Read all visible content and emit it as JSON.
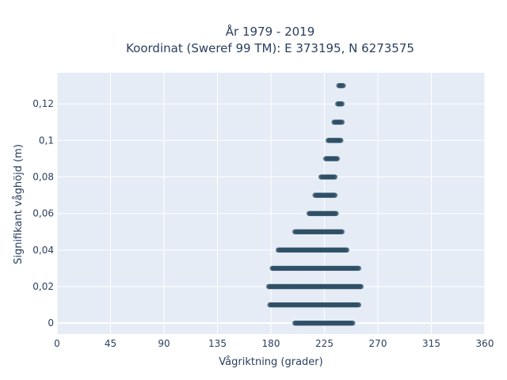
{
  "chart_data": {
    "type": "scatter",
    "title_line1": "År 1979 - 2019",
    "title_line2": "Koordinat (Sweref 99 TM): E 373195, N 6273575",
    "xlabel": "Vågriktning (grader)",
    "ylabel": "Signifikant våghöjd (m)",
    "xlim": [
      0,
      360
    ],
    "ylim": [
      -0.006,
      0.137
    ],
    "x_ticks": [
      0,
      45,
      90,
      135,
      180,
      225,
      270,
      315,
      360
    ],
    "x_tick_labels": [
      "0",
      "45",
      "90",
      "135",
      "180",
      "225",
      "270",
      "315",
      "360"
    ],
    "y_ticks": [
      0,
      0.02,
      0.04,
      0.06,
      0.08,
      0.1,
      0.12
    ],
    "y_tick_labels": [
      "0",
      "0,02",
      "0,04",
      "0,06",
      "0,08",
      "0,1",
      "0,12"
    ],
    "grid": true,
    "plot_background": "#e5ecf6",
    "marker_color": "#2f5066",
    "series": [
      {
        "bands": [
          {
            "y": 0.0,
            "x_min": 200,
            "x_max": 249
          },
          {
            "y": 0.01,
            "x_min": 179,
            "x_max": 254
          },
          {
            "y": 0.02,
            "x_min": 178,
            "x_max": 256
          },
          {
            "y": 0.03,
            "x_min": 181,
            "x_max": 254
          },
          {
            "y": 0.04,
            "x_min": 186,
            "x_max": 244
          },
          {
            "y": 0.05,
            "x_min": 200,
            "x_max": 240
          },
          {
            "y": 0.06,
            "x_min": 212,
            "x_max": 235
          },
          {
            "y": 0.07,
            "x_min": 217,
            "x_max": 234
          },
          {
            "y": 0.08,
            "x_min": 222,
            "x_max": 234
          },
          {
            "y": 0.09,
            "x_min": 226,
            "x_max": 236
          },
          {
            "y": 0.1,
            "x_min": 228,
            "x_max": 239
          },
          {
            "y": 0.11,
            "x_min": 233,
            "x_max": 240
          },
          {
            "y": 0.12,
            "x_min": 236,
            "x_max": 240
          },
          {
            "y": 0.13,
            "x_min": 237,
            "x_max": 241
          }
        ]
      }
    ]
  }
}
